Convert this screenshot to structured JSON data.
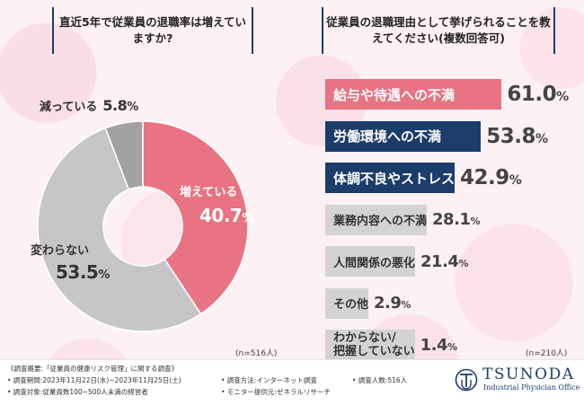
{
  "left_title": "直近5年で従業員の退職率は増えていますか?",
  "right_title": "従業員の退職理由として挙げられることを教えてください(複数回答可)",
  "chart_data": [
    {
      "type": "pie",
      "categories": [
        "増えている",
        "変わらない",
        "減っている"
      ],
      "values": [
        40.7,
        53.5,
        5.8
      ],
      "unit": "%",
      "colors": [
        "#e87382",
        "#c6c6c6",
        "#a2a2a2"
      ],
      "sample": "(n=516人)"
    },
    {
      "type": "bar",
      "categories": [
        "給与や待遇への不満",
        "労働環境への不満",
        "体調不良やストレス",
        "業務内容への不満",
        "人間関係の悪化",
        "その他",
        "わからない/把握していない"
      ],
      "category_lines": [
        [
          "給与や待遇への不満"
        ],
        [
          "労働環境への不満"
        ],
        [
          "体調不良やストレス"
        ],
        [
          "業務内容への不満"
        ],
        [
          "人間関係の悪化"
        ],
        [
          "その他"
        ],
        [
          "わからない/",
          "把握していない"
        ]
      ],
      "values": [
        61.0,
        53.8,
        42.9,
        28.1,
        21.4,
        2.9,
        1.4
      ],
      "unit": "%",
      "colors": [
        "#e87382",
        "#1c3d6a",
        "#1c3d6a",
        "#d3d3d3",
        "#d3d3d3",
        "#d3d3d3",
        "#d3d3d3"
      ],
      "sample": "(n=210人)"
    }
  ],
  "footer": {
    "overview": "《調査概要:「従業員の健康リスク管理」に関する調査》",
    "period": "• 調査期間:2023年11月22日(水)~2023年11月25日(土)",
    "target": "• 調査対象:従業員数100~500人未満の経営者",
    "method": "• 調査方法:インターネット調査",
    "monitor": "• モニター提供元:ゼネラルリサーチ",
    "count": "• 調査人数:516人"
  },
  "logo": {
    "name": "TSUNODA",
    "sub": "Industrial Physician Office",
    "icon": "tsunoda-logo-icon"
  }
}
